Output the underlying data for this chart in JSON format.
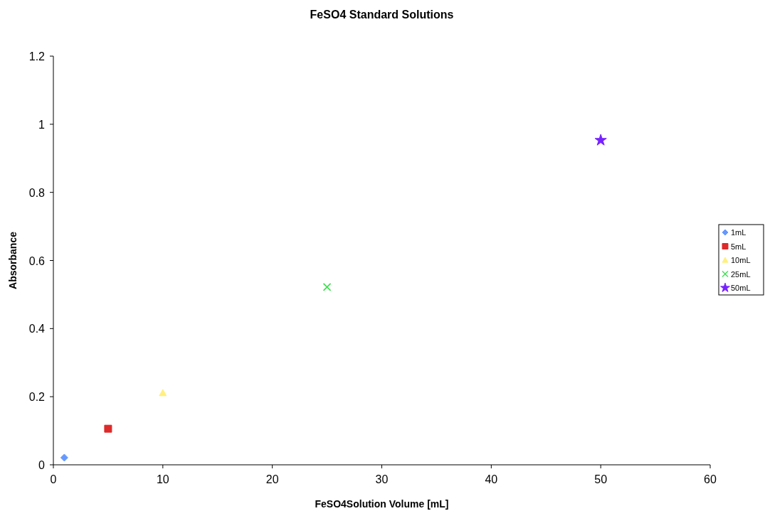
{
  "chart_data": {
    "type": "scatter",
    "title": "FeSO4 Standard Solutions",
    "xlabel": "FeSO4Solution Volume [mL]",
    "ylabel": "Absorbance",
    "xlim": [
      0,
      60
    ],
    "xticks": [
      0,
      10,
      20,
      30,
      40,
      50,
      60
    ],
    "ylim": [
      0,
      1.2
    ],
    "yticks": [
      0,
      0.2,
      0.4,
      0.6,
      0.8,
      1,
      1.2
    ],
    "grid": false,
    "legend": "right",
    "series": [
      {
        "name": "1mL",
        "color": "#6699ff",
        "marker": "diamond",
        "x": [
          1
        ],
        "values": [
          0.021
        ]
      },
      {
        "name": "5mL",
        "color": "#dd2a2a",
        "marker": "square",
        "x": [
          5
        ],
        "values": [
          0.106
        ]
      },
      {
        "name": "10mL",
        "color": "#fff080",
        "marker": "triangle",
        "x": [
          10
        ],
        "values": [
          0.211
        ]
      },
      {
        "name": "25mL",
        "color": "#44dd55",
        "marker": "cross",
        "x": [
          25
        ],
        "values": [
          0.522
        ]
      },
      {
        "name": "50mL",
        "color": "#7722ff",
        "marker": "star",
        "x": [
          50
        ],
        "values": [
          0.953
        ]
      }
    ]
  }
}
